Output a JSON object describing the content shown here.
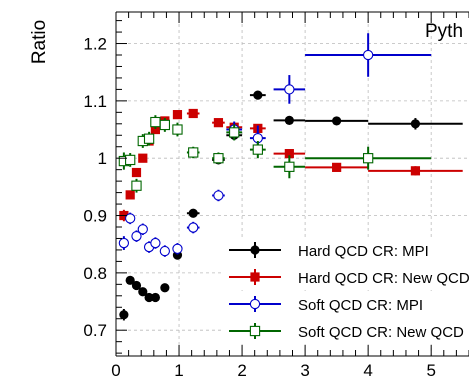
{
  "chart_data": {
    "type": "scatter",
    "title": "",
    "xlabel": "",
    "ylabel": "Ratio",
    "tag_text": "Pyth",
    "xlim": [
      0,
      5.6
    ],
    "ylim": [
      0.655,
      1.255
    ],
    "grid": true,
    "x_ticks": [
      "0",
      "1",
      "2",
      "3",
      "4",
      "5"
    ],
    "y_ticks": [
      "0.7",
      "0.8",
      "0.9",
      "1",
      "1.1",
      "1.2"
    ],
    "legend_position": "bottom-right",
    "series": [
      {
        "name": "Hard QCD CR: MPI",
        "color": "#000000",
        "marker": "filled-circle",
        "points": [
          {
            "x": 0.125,
            "y": 0.727,
            "xerr": 0.025,
            "yerr": 0.01
          },
          {
            "x": 0.225,
            "y": 0.787,
            "xerr": 0.025,
            "yerr": 0.006
          },
          {
            "x": 0.325,
            "y": 0.778,
            "xerr": 0.025,
            "yerr": 0.006
          },
          {
            "x": 0.425,
            "y": 0.767,
            "xerr": 0.025,
            "yerr": 0.006
          },
          {
            "x": 0.525,
            "y": 0.757,
            "xerr": 0.025,
            "yerr": 0.006
          },
          {
            "x": 0.625,
            "y": 0.757,
            "xerr": 0.025,
            "yerr": 0.006
          },
          {
            "x": 0.775,
            "y": 0.774,
            "xerr": 0.05,
            "yerr": 0.006
          },
          {
            "x": 0.975,
            "y": 0.831,
            "xerr": 0.05,
            "yerr": 0.007
          },
          {
            "x": 1.225,
            "y": 0.904,
            "xerr": 0.1,
            "yerr": 0.006
          },
          {
            "x": 1.625,
            "y": 0.997,
            "xerr": 0.1,
            "yerr": 0.006
          },
          {
            "x": 1.875,
            "y": 1.04,
            "xerr": 0.125,
            "yerr": 0.006
          },
          {
            "x": 2.25,
            "y": 1.11,
            "xerr": 0.125,
            "yerr": 0.006
          },
          {
            "x": 2.75,
            "y": 1.066,
            "xerr": 0.25,
            "yerr": 0.006
          },
          {
            "x": 3.5,
            "y": 1.065,
            "xerr": 0.5,
            "yerr": 0.007
          },
          {
            "x": 4.75,
            "y": 1.06,
            "xerr": 0.75,
            "yerr": 0.01
          }
        ]
      },
      {
        "name": "Hard QCD CR: New QCD",
        "color": "#cc0000",
        "marker": "filled-square",
        "points": [
          {
            "x": 0.125,
            "y": 0.9,
            "xerr": 0.025,
            "yerr": 0.01
          },
          {
            "x": 0.225,
            "y": 0.936,
            "xerr": 0.025,
            "yerr": 0.006
          },
          {
            "x": 0.325,
            "y": 0.975,
            "xerr": 0.025,
            "yerr": 0.006
          },
          {
            "x": 0.425,
            "y": 1.0,
            "xerr": 0.025,
            "yerr": 0.006
          },
          {
            "x": 0.525,
            "y": 1.03,
            "xerr": 0.025,
            "yerr": 0.006
          },
          {
            "x": 0.625,
            "y": 1.05,
            "xerr": 0.025,
            "yerr": 0.006
          },
          {
            "x": 0.775,
            "y": 1.065,
            "xerr": 0.05,
            "yerr": 0.006
          },
          {
            "x": 0.975,
            "y": 1.076,
            "xerr": 0.05,
            "yerr": 0.006
          },
          {
            "x": 1.225,
            "y": 1.078,
            "xerr": 0.1,
            "yerr": 0.006
          },
          {
            "x": 1.625,
            "y": 1.062,
            "xerr": 0.1,
            "yerr": 0.006
          },
          {
            "x": 1.875,
            "y": 1.054,
            "xerr": 0.125,
            "yerr": 0.006
          },
          {
            "x": 2.25,
            "y": 1.052,
            "xerr": 0.125,
            "yerr": 0.006
          },
          {
            "x": 2.75,
            "y": 1.008,
            "xerr": 0.25,
            "yerr": 0.006
          },
          {
            "x": 3.5,
            "y": 0.984,
            "xerr": 0.5,
            "yerr": 0.006
          },
          {
            "x": 4.75,
            "y": 0.978,
            "xerr": 0.75,
            "yerr": 0.008
          }
        ]
      },
      {
        "name": "Soft QCD CR: MPI",
        "color": "#0000cc",
        "marker": "open-circle",
        "points": [
          {
            "x": 0.125,
            "y": 0.852,
            "xerr": 0.025,
            "yerr": 0.012
          },
          {
            "x": 0.225,
            "y": 0.895,
            "xerr": 0.025,
            "yerr": 0.01
          },
          {
            "x": 0.325,
            "y": 0.864,
            "xerr": 0.025,
            "yerr": 0.01
          },
          {
            "x": 0.425,
            "y": 0.876,
            "xerr": 0.025,
            "yerr": 0.01
          },
          {
            "x": 0.525,
            "y": 0.845,
            "xerr": 0.025,
            "yerr": 0.01
          },
          {
            "x": 0.625,
            "y": 0.852,
            "xerr": 0.025,
            "yerr": 0.01
          },
          {
            "x": 0.775,
            "y": 0.838,
            "xerr": 0.05,
            "yerr": 0.01
          },
          {
            "x": 0.975,
            "y": 0.842,
            "xerr": 0.05,
            "yerr": 0.01
          },
          {
            "x": 1.225,
            "y": 0.879,
            "xerr": 0.1,
            "yerr": 0.01
          },
          {
            "x": 1.625,
            "y": 0.935,
            "xerr": 0.1,
            "yerr": 0.01
          },
          {
            "x": 1.875,
            "y": 1.05,
            "xerr": 0.125,
            "yerr": 0.014
          },
          {
            "x": 2.25,
            "y": 1.035,
            "xerr": 0.125,
            "yerr": 0.022
          },
          {
            "x": 2.75,
            "y": 1.12,
            "xerr": 0.25,
            "yerr": 0.025
          },
          {
            "x": 4.0,
            "y": 1.18,
            "xerr": 1.0,
            "yerr": 0.038
          }
        ]
      },
      {
        "name": "Soft QCD CR: New QCD",
        "color": "#006600",
        "marker": "open-square",
        "points": [
          {
            "x": 0.125,
            "y": 0.995,
            "xerr": 0.025,
            "yerr": 0.015
          },
          {
            "x": 0.225,
            "y": 0.997,
            "xerr": 0.025,
            "yerr": 0.012
          },
          {
            "x": 0.325,
            "y": 0.952,
            "xerr": 0.025,
            "yerr": 0.012
          },
          {
            "x": 0.425,
            "y": 1.03,
            "xerr": 0.025,
            "yerr": 0.012
          },
          {
            "x": 0.525,
            "y": 1.034,
            "xerr": 0.025,
            "yerr": 0.012
          },
          {
            "x": 0.625,
            "y": 1.063,
            "xerr": 0.025,
            "yerr": 0.012
          },
          {
            "x": 0.775,
            "y": 1.058,
            "xerr": 0.05,
            "yerr": 0.012
          },
          {
            "x": 0.975,
            "y": 1.05,
            "xerr": 0.05,
            "yerr": 0.012
          },
          {
            "x": 1.225,
            "y": 1.01,
            "xerr": 0.1,
            "yerr": 0.01
          },
          {
            "x": 1.625,
            "y": 1.0,
            "xerr": 0.1,
            "yerr": 0.01
          },
          {
            "x": 1.875,
            "y": 1.045,
            "xerr": 0.125,
            "yerr": 0.014
          },
          {
            "x": 2.25,
            "y": 1.015,
            "xerr": 0.125,
            "yerr": 0.015
          },
          {
            "x": 2.75,
            "y": 0.985,
            "xerr": 0.25,
            "yerr": 0.02
          },
          {
            "x": 4.0,
            "y": 1.0,
            "xerr": 1.0,
            "yerr": 0.02
          }
        ]
      }
    ]
  }
}
